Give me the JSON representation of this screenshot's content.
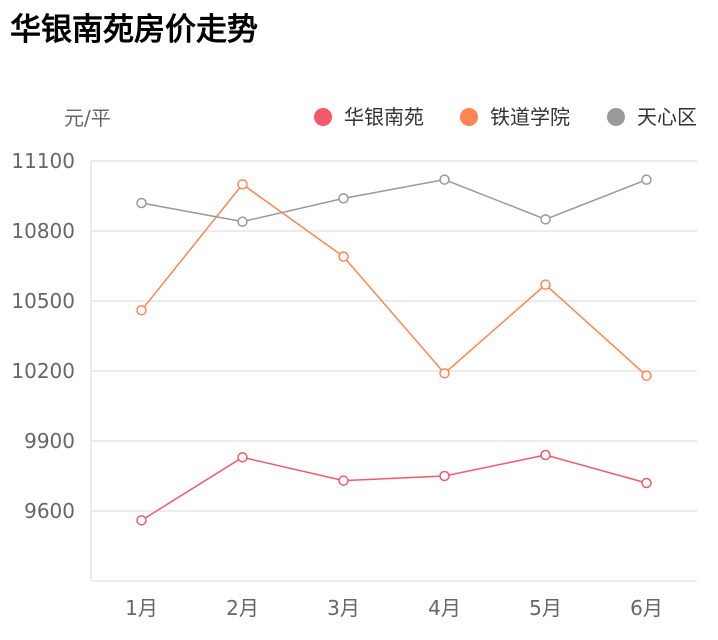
{
  "chart_data": {
    "type": "line",
    "title": "华银南苑房价走势",
    "ylabel": "元/平",
    "categories": [
      "1月",
      "2月",
      "3月",
      "4月",
      "5月",
      "6月"
    ],
    "ylim": [
      9300,
      11100
    ],
    "yticks": [
      9600,
      9900,
      10200,
      10500,
      10800,
      11100
    ],
    "grid": true,
    "legend": "top-right",
    "series": [
      {
        "name": "华银南苑",
        "color": "#f25a6a",
        "values": [
          9560,
          9830,
          9730,
          9750,
          9840,
          9720
        ]
      },
      {
        "name": "铁道学院",
        "color": "#ff8552",
        "values": [
          10460,
          11000,
          10690,
          10190,
          10570,
          10180
        ]
      },
      {
        "name": "天心区",
        "color": "#999999",
        "values": [
          10920,
          10840,
          10940,
          11020,
          10850,
          11020
        ]
      }
    ]
  }
}
